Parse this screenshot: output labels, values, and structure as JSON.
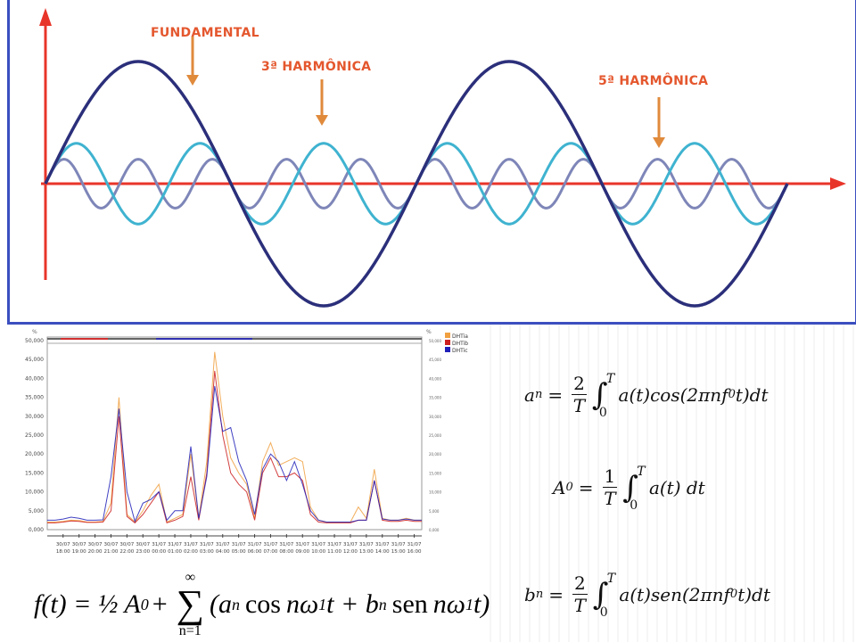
{
  "diagram": {
    "labels": {
      "fundamental": "FUNDAMENTAL",
      "third": "3ª HARMÔNICA",
      "fifth": "5ª HARMÔNICA"
    },
    "harmonics": [
      {
        "order": 1,
        "relative_amplitude": 1.0,
        "color": "#2b2f7a"
      },
      {
        "order": 3,
        "relative_amplitude": 0.33,
        "color": "#3fb3d0"
      },
      {
        "order": 5,
        "relative_amplitude": 0.2,
        "color": "#7e86b8"
      }
    ],
    "cycles_shown": 2,
    "axis_color": "#e8352a",
    "arrow_color": "#e08a3c",
    "frame_color": "#3b4fbf"
  },
  "chart_data": {
    "type": "line",
    "y_unit_left": "%",
    "y_unit_right": "%",
    "ylim": [
      0,
      50000
    ],
    "yticks": [
      "0,000",
      "5,000",
      "10,000",
      "15,000",
      "20,000",
      "25,000",
      "30,000",
      "35,000",
      "40,000",
      "45,000",
      "50,000"
    ],
    "xtick_labels": [
      [
        "30/07",
        "18:00"
      ],
      [
        "30/07",
        "19:00"
      ],
      [
        "30/07",
        "20:00"
      ],
      [
        "30/07",
        "21:00"
      ],
      [
        "30/07",
        "22:00"
      ],
      [
        "30/07",
        "23:00"
      ],
      [
        "31/07",
        "00:00"
      ],
      [
        "31/07",
        "01:00"
      ],
      [
        "31/07",
        "02:00"
      ],
      [
        "31/07",
        "03:00"
      ],
      [
        "31/07",
        "04:00"
      ],
      [
        "31/07",
        "05:00"
      ],
      [
        "31/07",
        "06:00"
      ],
      [
        "31/07",
        "07:00"
      ],
      [
        "31/07",
        "08:00"
      ],
      [
        "31/07",
        "09:00"
      ],
      [
        "31/07",
        "10:00"
      ],
      [
        "31/07",
        "11:00"
      ],
      [
        "31/07",
        "12:00"
      ],
      [
        "31/07",
        "13:00"
      ],
      [
        "31/07",
        "14:00"
      ],
      [
        "31/07",
        "15:00"
      ],
      [
        "31/07",
        "16:00"
      ]
    ],
    "x": [
      "17:00",
      "17:30",
      "18:00",
      "18:30",
      "19:00",
      "19:30",
      "20:00",
      "20:30",
      "21:00",
      "21:30",
      "22:00",
      "22:30",
      "23:00",
      "23:30",
      "00:00",
      "00:30",
      "01:00",
      "01:30",
      "02:00",
      "02:30",
      "03:00",
      "03:30",
      "04:00",
      "04:30",
      "05:00",
      "05:30",
      "06:00",
      "06:30",
      "07:00",
      "07:30",
      "08:00",
      "08:30",
      "09:00",
      "09:30",
      "10:00",
      "10:30",
      "11:00",
      "11:30",
      "12:00",
      "12:30",
      "13:00",
      "13:30",
      "14:00",
      "14:30",
      "15:00",
      "15:30",
      "16:00",
      "16:30"
    ],
    "series": [
      {
        "name": "DHTia",
        "color": "#f0a040",
        "values": [
          2000,
          2000,
          2200,
          2500,
          2400,
          2000,
          2000,
          2200,
          7000,
          35000,
          4000,
          2000,
          5000,
          9000,
          12000,
          2000,
          3000,
          4000,
          20000,
          3000,
          18000,
          47000,
          30000,
          19000,
          15000,
          12000,
          3000,
          18000,
          23000,
          17000,
          18000,
          19000,
          18000,
          6000,
          2500,
          2000,
          2000,
          2000,
          2000,
          6000,
          3000,
          16000,
          3000,
          2500,
          2500,
          3000,
          2500,
          2500
        ]
      },
      {
        "name": "DHTib",
        "color": "#cc2020",
        "values": [
          1800,
          1800,
          2000,
          2300,
          2200,
          1900,
          1900,
          2000,
          5000,
          30000,
          3500,
          1800,
          4000,
          7000,
          10000,
          1800,
          2500,
          3500,
          14000,
          2500,
          15000,
          42000,
          25000,
          15000,
          12000,
          10000,
          2500,
          15000,
          19000,
          14000,
          14000,
          15000,
          13000,
          4000,
          2000,
          1800,
          1800,
          1800,
          1800,
          2500,
          2500,
          13000,
          2500,
          2200,
          2200,
          2500,
          2200,
          2200
        ]
      },
      {
        "name": "DHTic",
        "color": "#2020b8",
        "values": [
          2500,
          2500,
          2800,
          3300,
          3000,
          2500,
          2500,
          2600,
          14000,
          32000,
          10000,
          2200,
          7000,
          8000,
          10000,
          2500,
          5000,
          5000,
          22000,
          3000,
          14000,
          38000,
          26000,
          27000,
          18000,
          13000,
          4000,
          16000,
          20000,
          18000,
          13000,
          18000,
          12000,
          5000,
          2500,
          2000,
          2000,
          2000,
          2000,
          2500,
          2500,
          13000,
          2800,
          2500,
          2500,
          2800,
          2500,
          2500
        ]
      }
    ],
    "legend": "top-right",
    "grid": false
  },
  "formulas": {
    "an": {
      "lhs": "a",
      "sub": "n",
      "num": "2",
      "den": "T",
      "upper": "T",
      "lower": "0",
      "body": "a(t)cos(2πnf",
      "body_sub": "0",
      "body_end": "t)dt"
    },
    "A0": {
      "lhs": "A",
      "sub": "0",
      "num": "1",
      "den": "T",
      "upper": "T",
      "lower": "0",
      "body": "a(t) dt"
    },
    "bn": {
      "lhs": "b",
      "sub": "n",
      "num": "2",
      "den": "T",
      "upper": "T",
      "lower": "0",
      "body": "a(t)sen(2πnf",
      "body_sub": "0",
      "body_end": "t)dt"
    },
    "fourier": {
      "lhs": "f(t) = ½ A",
      "lhs_sub": "0",
      "plus": "+",
      "sum_top": "∞",
      "sum_sym": "∑",
      "sum_bottom": "n=1",
      "term": "(a",
      "term_sub": "n",
      "cos": "cos",
      "nw1": "nω",
      "nw1_sub": "1",
      "t_plus_b": "t + b",
      "b_sub": "n",
      "sen": "sen",
      "end": "t)"
    }
  }
}
